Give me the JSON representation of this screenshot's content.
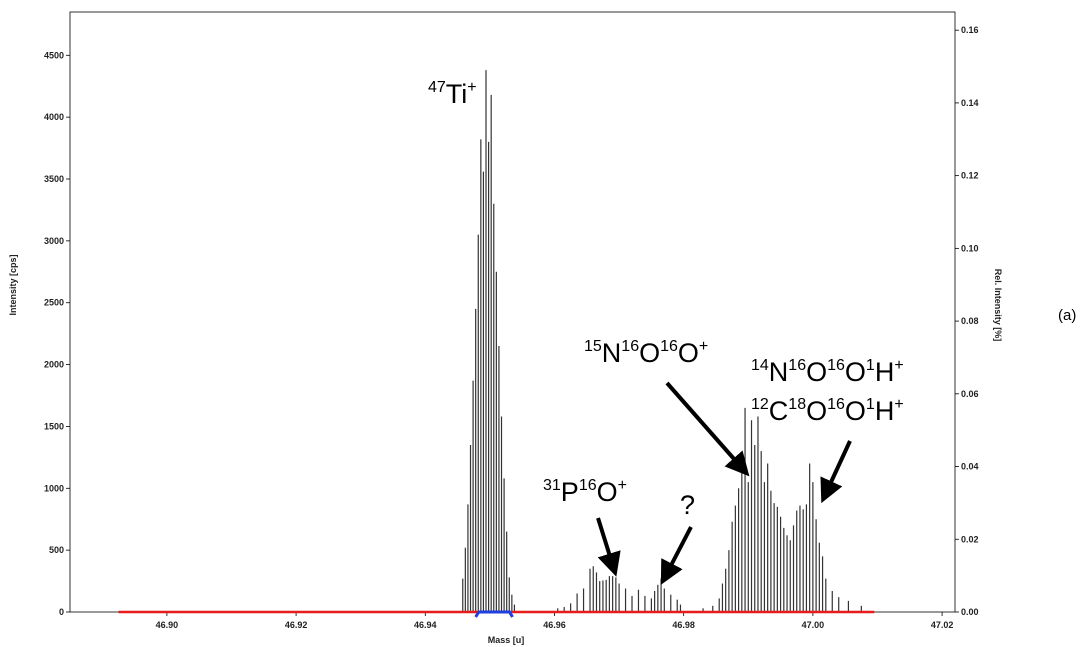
{
  "panel_label": "(a)",
  "chart_data": {
    "type": "bar",
    "xlabel": "Mass [u]",
    "ylabel": "Intensity [cps]",
    "y2label": "Rel. Intensity [%]",
    "xlim": [
      46.885,
      47.022
    ],
    "ylim": [
      0,
      4850
    ],
    "y2lim": [
      0,
      0.165
    ],
    "xticks": [
      "46.90",
      "46.92",
      "46.94",
      "46.96",
      "46.98",
      "47.00",
      "47.02"
    ],
    "yticks": [
      "0",
      "500",
      "1000",
      "1500",
      "2000",
      "2500",
      "3000",
      "3500",
      "4000",
      "4500"
    ],
    "y2ticks": [
      "0.00",
      "0.02",
      "0.04",
      "0.06",
      "0.08",
      "0.10",
      "0.12",
      "0.14",
      "0.16"
    ],
    "grid": false,
    "series": [
      {
        "values": [
          [
            46.9458,
            270
          ],
          [
            46.9462,
            520
          ],
          [
            46.9466,
            870
          ],
          [
            46.947,
            1350
          ],
          [
            46.9474,
            1870
          ],
          [
            46.9478,
            2450
          ],
          [
            46.9482,
            3050
          ],
          [
            46.9486,
            3820
          ],
          [
            46.949,
            3560
          ],
          [
            46.9494,
            4380
          ],
          [
            46.9498,
            3800
          ],
          [
            46.9502,
            4180
          ],
          [
            46.9506,
            3300
          ],
          [
            46.951,
            2750
          ],
          [
            46.9514,
            2150
          ],
          [
            46.9518,
            1580
          ],
          [
            46.9522,
            1080
          ],
          [
            46.9526,
            650
          ],
          [
            46.953,
            280
          ],
          [
            46.9534,
            140
          ],
          [
            46.9538,
            60
          ],
          [
            46.9605,
            30
          ],
          [
            46.9615,
            40
          ],
          [
            46.9625,
            70
          ],
          [
            46.9635,
            150
          ],
          [
            46.9645,
            190
          ],
          [
            46.9655,
            350
          ],
          [
            46.966,
            370
          ],
          [
            46.9665,
            320
          ],
          [
            46.967,
            250
          ],
          [
            46.9675,
            255
          ],
          [
            46.968,
            260
          ],
          [
            46.9685,
            290
          ],
          [
            46.969,
            290
          ],
          [
            46.9695,
            280
          ],
          [
            46.97,
            230
          ],
          [
            46.971,
            190
          ],
          [
            46.972,
            130
          ],
          [
            46.973,
            180
          ],
          [
            46.974,
            130
          ],
          [
            46.975,
            110
          ],
          [
            46.9755,
            170
          ],
          [
            46.976,
            220
          ],
          [
            46.9765,
            270
          ],
          [
            46.977,
            190
          ],
          [
            46.978,
            140
          ],
          [
            46.979,
            100
          ],
          [
            46.9795,
            60
          ],
          [
            46.983,
            30
          ],
          [
            46.9845,
            50
          ],
          [
            46.9855,
            110
          ],
          [
            46.986,
            230
          ],
          [
            46.9865,
            350
          ],
          [
            46.987,
            500
          ],
          [
            46.9875,
            730
          ],
          [
            46.988,
            860
          ],
          [
            46.9885,
            1000
          ],
          [
            46.989,
            1250
          ],
          [
            46.9895,
            1650
          ],
          [
            46.99,
            1050
          ],
          [
            46.9905,
            1550
          ],
          [
            46.991,
            1350
          ],
          [
            46.9915,
            1580
          ],
          [
            46.992,
            1300
          ],
          [
            46.9925,
            1050
          ],
          [
            46.993,
            1200
          ],
          [
            46.9935,
            980
          ],
          [
            46.994,
            880
          ],
          [
            46.9945,
            850
          ],
          [
            46.995,
            770
          ],
          [
            46.9955,
            680
          ],
          [
            46.996,
            620
          ],
          [
            46.9965,
            580
          ],
          [
            46.997,
            700
          ],
          [
            46.9975,
            820
          ],
          [
            46.998,
            860
          ],
          [
            46.9985,
            830
          ],
          [
            46.999,
            870
          ],
          [
            46.9995,
            1200
          ],
          [
            47.0,
            1050
          ],
          [
            47.0005,
            750
          ],
          [
            47.001,
            560
          ],
          [
            47.0015,
            450
          ],
          [
            47.002,
            270
          ],
          [
            47.003,
            170
          ],
          [
            47.004,
            120
          ],
          [
            47.0055,
            90
          ],
          [
            47.0075,
            50
          ]
        ]
      }
    ],
    "annotations": [
      {
        "base": "47",
        "sym": "Ti",
        "charge": "+"
      },
      {
        "base": "15",
        "sym": "N",
        "b2": "16",
        "s2": "O",
        "b3": "16",
        "s3": "O",
        "charge": "+"
      },
      {
        "base": "14",
        "sym": "N",
        "b2": "16",
        "s2": "O",
        "b3": "16",
        "s3": "O",
        "b4": "1",
        "s4": "H",
        "charge": "+"
      },
      {
        "base": "12",
        "sym": "C",
        "b2": "18",
        "s2": "O",
        "b3": "16",
        "s3": "O",
        "b4": "1",
        "s4": "H",
        "charge": "+"
      },
      {
        "base": "31",
        "sym": "P",
        "b2": "16",
        "s2": "O",
        "charge": "+"
      },
      {
        "text": "?"
      }
    ],
    "baseline": {
      "red_range": [
        46.8925,
        47.0095
      ],
      "blue_range": [
        46.9478,
        46.9535
      ],
      "colors": {
        "red": "#e81c1c",
        "blue": "#1f3fe0"
      }
    }
  }
}
